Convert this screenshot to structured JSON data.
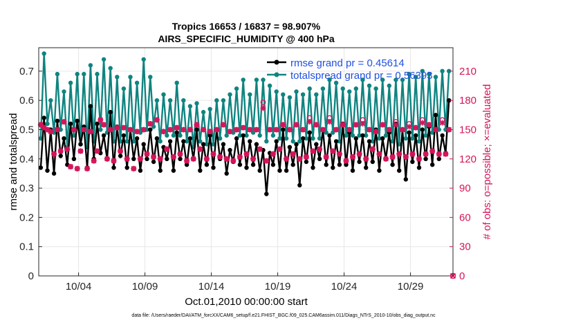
{
  "chart_data": {
    "type": "line",
    "title_line1": "Tropics 16653 / 16837 = 98.907%",
    "title_line2": "AIRS_SPECIFIC_HUMIDITY @ 400 hPa",
    "xlabel": "Oct.01,2010 00:00:00 start",
    "ylabel_left": "rmse and totalspread",
    "ylabel_right": "# of obs: o=possible; ×=evaluated",
    "xlim": [
      1,
      32.2
    ],
    "ylim_left": [
      0,
      0.78
    ],
    "ylim_right": [
      0,
      234
    ],
    "x_ticks": [
      {
        "value": 4,
        "label": "10/04"
      },
      {
        "value": 9,
        "label": "10/09"
      },
      {
        "value": 14,
        "label": "10/14"
      },
      {
        "value": 19,
        "label": "10/19"
      },
      {
        "value": 24,
        "label": "10/24"
      },
      {
        "value": 29,
        "label": "10/29"
      }
    ],
    "y_ticks_left": [
      {
        "value": 0,
        "label": "0"
      },
      {
        "value": 0.1,
        "label": "0.1"
      },
      {
        "value": 0.2,
        "label": "0.2"
      },
      {
        "value": 0.3,
        "label": "0.3"
      },
      {
        "value": 0.4,
        "label": "0.4"
      },
      {
        "value": 0.5,
        "label": "0.5"
      },
      {
        "value": 0.6,
        "label": "0.6"
      },
      {
        "value": 0.7,
        "label": "0.7"
      }
    ],
    "y_ticks_right": [
      {
        "value": 0,
        "label": "0"
      },
      {
        "value": 30,
        "label": "30"
      },
      {
        "value": 60,
        "label": "60"
      },
      {
        "value": 90,
        "label": "90"
      },
      {
        "value": 120,
        "label": "120"
      },
      {
        "value": 150,
        "label": "150"
      },
      {
        "value": 180,
        "label": "180"
      },
      {
        "value": 210,
        "label": "210"
      }
    ],
    "x_start": 1.15,
    "x_step": 0.25,
    "series": [
      {
        "name": "rmse",
        "legend": "rmse grand pr = 0.45614",
        "color": "#000000",
        "values": [
          0.37,
          0.54,
          0.36,
          0.5,
          0.35,
          0.53,
          0.41,
          0.47,
          0.38,
          0.52,
          0.4,
          0.53,
          0.45,
          0.51,
          0.37,
          0.58,
          0.4,
          0.52,
          0.42,
          0.48,
          0.4,
          0.56,
          0.37,
          0.51,
          0.41,
          0.48,
          0.37,
          0.5,
          0.4,
          0.47,
          0.36,
          0.45,
          0.4,
          0.5,
          0.39,
          0.47,
          0.36,
          0.44,
          0.4,
          0.46,
          0.36,
          0.49,
          0.4,
          0.46,
          0.38,
          0.47,
          0.4,
          0.5,
          0.36,
          0.45,
          0.38,
          0.48,
          0.37,
          0.5,
          0.4,
          0.45,
          0.35,
          0.43,
          0.39,
          0.47,
          0.38,
          0.48,
          0.37,
          0.46,
          0.38,
          0.45,
          0.36,
          0.43,
          0.28,
          0.42,
          0.38,
          0.46,
          0.36,
          0.5,
          0.36,
          0.44,
          0.38,
          0.45,
          0.31,
          0.47,
          0.39,
          0.49,
          0.37,
          0.45,
          0.4,
          0.5,
          0.38,
          0.48,
          0.37,
          0.46,
          0.38,
          0.52,
          0.38,
          0.49,
          0.36,
          0.47,
          0.39,
          0.48,
          0.37,
          0.46,
          0.39,
          0.5,
          0.36,
          0.47,
          0.4,
          0.49,
          0.38,
          0.52,
          0.36,
          0.5,
          0.33,
          0.49,
          0.39,
          0.48,
          0.37,
          0.5,
          0.4,
          0.51,
          0.38,
          0.55,
          0.4,
          0.48,
          0.42,
          0.6
        ]
      },
      {
        "name": "totalspread",
        "legend": "totalspread grand pr = 0.56393",
        "color": "#0f8480",
        "values": [
          0.47,
          0.76,
          0.52,
          0.6,
          0.49,
          0.69,
          0.5,
          0.63,
          0.44,
          0.66,
          0.48,
          0.69,
          0.45,
          0.69,
          0.44,
          0.72,
          0.46,
          0.69,
          0.5,
          0.74,
          0.49,
          0.71,
          0.46,
          0.68,
          0.46,
          0.64,
          0.46,
          0.68,
          0.46,
          0.66,
          0.49,
          0.74,
          0.5,
          0.68,
          0.51,
          0.6,
          0.46,
          0.62,
          0.48,
          0.6,
          0.48,
          0.66,
          0.48,
          0.6,
          0.46,
          0.58,
          0.44,
          0.59,
          0.46,
          0.56,
          0.45,
          0.57,
          0.45,
          0.6,
          0.47,
          0.6,
          0.48,
          0.62,
          0.49,
          0.64,
          0.48,
          0.67,
          0.48,
          0.62,
          0.49,
          0.67,
          0.48,
          0.67,
          0.46,
          0.65,
          0.48,
          0.63,
          0.47,
          0.62,
          0.47,
          0.61,
          0.46,
          0.63,
          0.46,
          0.62,
          0.47,
          0.64,
          0.47,
          0.62,
          0.47,
          0.64,
          0.49,
          0.67,
          0.49,
          0.66,
          0.46,
          0.64,
          0.48,
          0.63,
          0.48,
          0.64,
          0.48,
          0.67,
          0.48,
          0.65,
          0.46,
          0.64,
          0.47,
          0.67,
          0.48,
          0.65,
          0.46,
          0.67,
          0.45,
          0.67,
          0.47,
          0.69,
          0.47,
          0.68,
          0.46,
          0.7,
          0.48,
          0.69,
          0.49,
          0.68,
          0.5,
          0.7,
          0.5,
          0.7
        ]
      }
    ],
    "obs_possible": [
      155,
      152,
      150,
      148,
      125,
      150,
      128,
      158,
      130,
      112,
      150,
      110,
      128,
      150,
      110,
      148,
      118,
      128,
      160,
      155,
      120,
      150,
      118,
      152,
      128,
      152,
      120,
      150,
      110,
      148,
      120,
      150,
      125,
      156,
      122,
      160,
      120,
      148,
      130,
      150,
      122,
      152,
      125,
      150,
      118,
      150,
      120,
      155,
      130,
      150,
      120,
      148,
      125,
      150,
      122,
      155,
      120,
      148,
      118,
      150,
      122,
      152,
      125,
      150,
      120,
      150,
      130,
      178,
      118,
      150,
      125,
      150,
      130,
      155,
      120,
      150,
      125,
      155,
      120,
      150,
      122,
      162,
      128,
      155,
      130,
      150,
      122,
      162,
      128,
      150,
      125,
      155,
      118,
      150,
      122,
      155,
      125,
      160,
      120,
      150,
      130,
      148,
      125,
      155,
      120,
      150,
      122,
      158,
      125,
      150,
      122,
      156,
      125,
      152,
      120,
      160,
      125,
      155,
      128,
      150,
      125,
      160,
      125,
      150
    ],
    "obs_evaluated": [
      155,
      152,
      150,
      148,
      125,
      150,
      128,
      158,
      130,
      112,
      150,
      110,
      128,
      150,
      110,
      148,
      118,
      128,
      160,
      155,
      120,
      150,
      118,
      152,
      128,
      152,
      120,
      150,
      110,
      148,
      120,
      150,
      125,
      156,
      122,
      160,
      120,
      148,
      130,
      150,
      122,
      152,
      125,
      150,
      118,
      150,
      120,
      155,
      130,
      150,
      120,
      148,
      125,
      150,
      122,
      155,
      120,
      148,
      118,
      150,
      122,
      152,
      125,
      150,
      120,
      150,
      130,
      172,
      118,
      150,
      125,
      150,
      130,
      155,
      120,
      150,
      125,
      155,
      120,
      150,
      122,
      158,
      128,
      155,
      130,
      150,
      122,
      158,
      128,
      150,
      125,
      155,
      118,
      150,
      122,
      155,
      125,
      156,
      120,
      150,
      130,
      148,
      125,
      155,
      120,
      150,
      122,
      155,
      125,
      150,
      122,
      153,
      125,
      152,
      120,
      157,
      125,
      155,
      128,
      150,
      125,
      157,
      125,
      150
    ],
    "obs_possible_color": "#d4145a",
    "obs_evaluated_color": "#d4145a",
    "trailing_point": {
      "x": 32.2,
      "value": 0
    }
  },
  "footnote": "data file: /Users/raeder/DAI/ATM_forcXX/CAM6_setup/f.e21.FHIST_BGC.f09_025.CAM6assim.011/Diags_NTrS_2010-10/obs_diag_output.nc"
}
